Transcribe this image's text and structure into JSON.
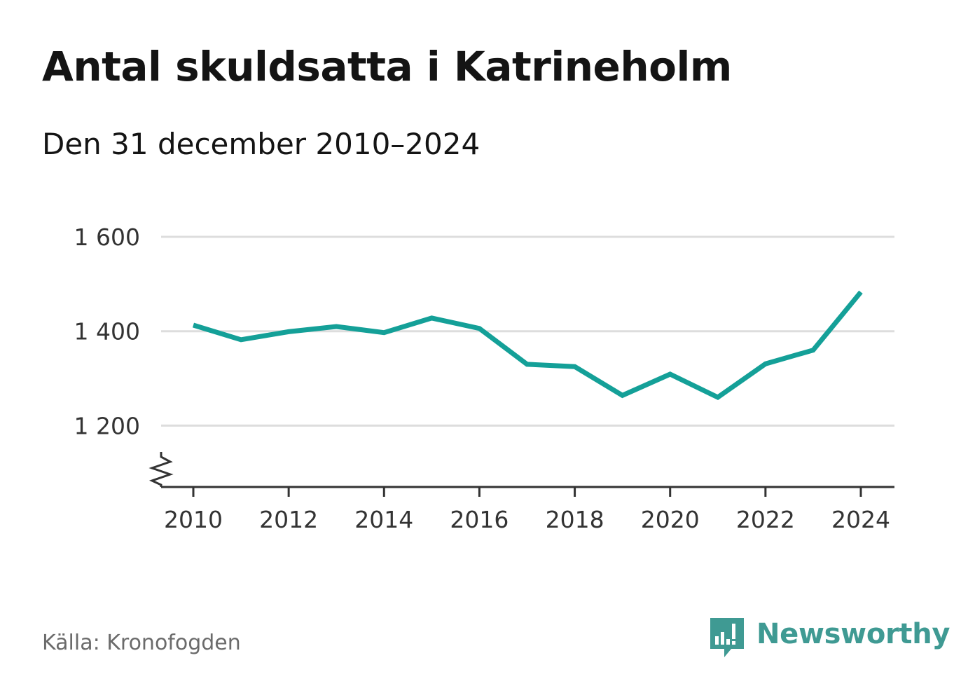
{
  "header": {
    "title": "Antal skuldsatta i Katrineholm",
    "subtitle": "Den 31 december 2010–2024"
  },
  "footer": {
    "source": "Källa: Kronofogden",
    "brand_name": "Newsworthy",
    "brand_icon": "newsworthy-logo-icon"
  },
  "colors": {
    "line": "#14a098",
    "grid": "#dddddd",
    "axis": "#333333",
    "brand": "#3f9a93"
  },
  "chart_data": {
    "type": "line",
    "title": "Antal skuldsatta i Katrineholm",
    "subtitle": "Den 31 december 2010–2024",
    "x": [
      2010,
      2011,
      2012,
      2013,
      2014,
      2015,
      2016,
      2017,
      2018,
      2019,
      2020,
      2021,
      2022,
      2023,
      2024
    ],
    "series": [
      {
        "values": [
          1413,
          1382,
          1399,
          1410,
          1397,
          1428,
          1406,
          1330,
          1325,
          1264,
          1309,
          1260,
          1331,
          1360,
          1483
        ]
      }
    ],
    "xticks": [
      2010,
      2012,
      2014,
      2016,
      2018,
      2020,
      2022,
      2024
    ],
    "xtick_labels": [
      "2010",
      "2012",
      "2014",
      "2016",
      "2018",
      "2020",
      "2022",
      "2024"
    ],
    "yticks": [
      1200,
      1400,
      1600
    ],
    "ytick_labels": [
      "1 200",
      "1 400",
      "1 600"
    ],
    "ylim": [
      1070,
      1600
    ],
    "y_axis_break": true,
    "grid": true,
    "legend": "none"
  }
}
